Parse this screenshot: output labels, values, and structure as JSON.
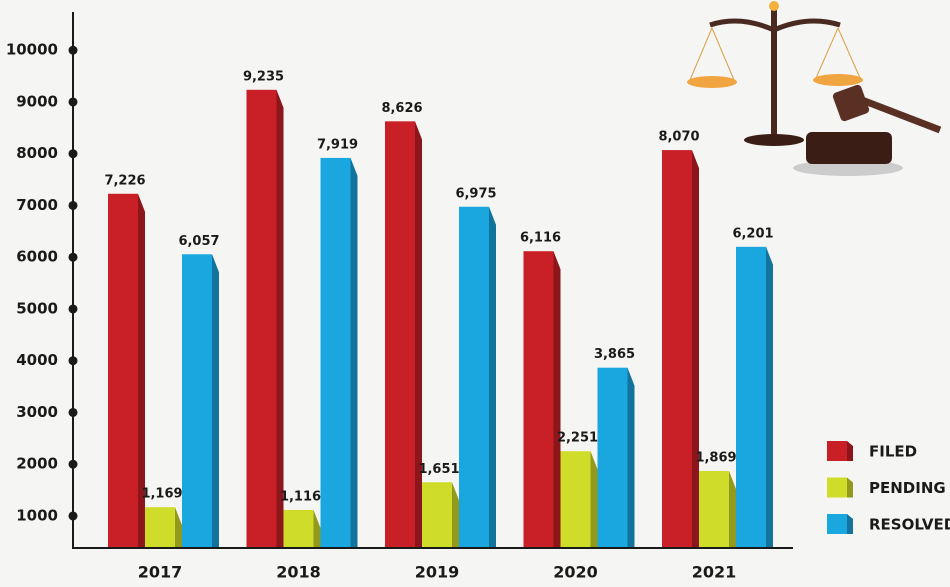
{
  "chart_data": {
    "type": "bar",
    "categories": [
      "2017",
      "2018",
      "2019",
      "2020",
      "2021"
    ],
    "series": [
      {
        "name": "FILED",
        "color": "#c82026",
        "values": [
          7226,
          9235,
          8626,
          6116,
          8070
        ],
        "value_labels": [
          "7,226",
          "9,235",
          "8,626",
          "6,116",
          "8,070"
        ]
      },
      {
        "name": "PENDING",
        "color": "#cfdc29",
        "values": [
          1169,
          1116,
          1651,
          2251,
          1869
        ],
        "value_labels": [
          "1,169",
          "1,116",
          "1,651",
          "2,251",
          "1,869"
        ]
      },
      {
        "name": "RESOLVED",
        "color": "#1aa6df",
        "values": [
          6057,
          7919,
          6975,
          3865,
          6201
        ],
        "value_labels": [
          "6,057",
          "7,919",
          "6,975",
          "3,865",
          "6,201"
        ]
      }
    ],
    "ylim": [
      400,
      10700
    ],
    "yticks": [
      1000,
      2000,
      3000,
      4000,
      5000,
      6000,
      7000,
      8000,
      9000,
      10000
    ],
    "legend": "right"
  }
}
